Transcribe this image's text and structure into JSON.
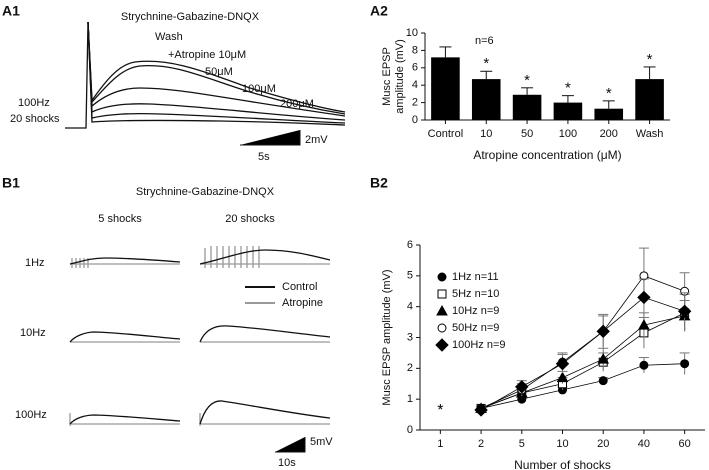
{
  "panels": [
    "A1",
    "A2",
    "B1",
    "B2"
  ],
  "a1": {
    "labels": [
      "Strychnine-Gabazine-DNQX",
      "Wash",
      "+Atropine 10μM",
      "50μM",
      "100μM",
      "200μM"
    ],
    "stim": [
      "100Hz",
      "20 shocks"
    ],
    "scale_y": "2mV",
    "scale_x": "5s"
  },
  "b1": {
    "title": "Strychnine-Gabazine-DNQX",
    "columns": [
      "5 shocks",
      "20 shocks"
    ],
    "rows": [
      "1Hz",
      "10Hz",
      "100Hz"
    ],
    "legend": [
      {
        "name": "Control",
        "color": "#111111"
      },
      {
        "name": "Atropine",
        "color": "#999999"
      }
    ],
    "scale_y": "5mV",
    "scale_x": "10s"
  },
  "chart_data": [
    {
      "type": "bar",
      "ylabel": [
        "Musc EPSP",
        "amplitude (mV)"
      ],
      "xlabel": "Atropine concentration (μM)",
      "annotation": "n=6",
      "color": "#000000",
      "categories": [
        "Control",
        "10",
        "50",
        "100",
        "200",
        "Wash"
      ],
      "values": [
        7.2,
        4.7,
        2.9,
        2.0,
        1.3,
        4.7
      ],
      "errors": [
        1.2,
        0.9,
        0.8,
        0.8,
        0.9,
        1.4
      ],
      "significance": [
        null,
        "*",
        "*",
        "*",
        "*",
        "*"
      ],
      "ylim": [
        0,
        10
      ],
      "yticks": [
        0,
        2,
        4,
        6,
        8,
        10
      ]
    },
    {
      "type": "line",
      "ylabel": "Musc EPSP amplitude (mV)",
      "xlabel": "Number of shocks",
      "legend": "upper left",
      "categories": [
        "1",
        "2",
        "5",
        "10",
        "20",
        "40",
        "60"
      ],
      "ylim": [
        0,
        6
      ],
      "yticks": [
        0,
        1,
        2,
        3,
        4,
        5,
        6
      ],
      "baseline": {
        "marker": "*",
        "value": 0.75,
        "error": 0.05
      },
      "series": [
        {
          "name": "1Hz n=11",
          "color": "#000000",
          "marker": "circle",
          "filled": true,
          "values": [
            null,
            0.7,
            1.0,
            1.3,
            1.6,
            2.1,
            2.15
          ],
          "errors": [
            null,
            0.05,
            0.1,
            0.1,
            0.1,
            0.25,
            0.35
          ]
        },
        {
          "name": "5Hz n=10",
          "color": "#000000",
          "marker": "square",
          "filled": false,
          "values": [
            null,
            0.7,
            1.2,
            1.5,
            2.2,
            3.15,
            3.8
          ],
          "errors": [
            null,
            0.05,
            0.15,
            0.2,
            0.3,
            0.5,
            0.6
          ]
        },
        {
          "name": "10Hz n=9",
          "color": "#000000",
          "marker": "triangle",
          "filled": true,
          "values": [
            null,
            0.7,
            1.2,
            1.7,
            2.3,
            3.4,
            3.7
          ],
          "errors": [
            null,
            0.05,
            0.15,
            0.2,
            0.35,
            0.4,
            0.5
          ]
        },
        {
          "name": "50Hz n=9",
          "color": "#000000",
          "marker": "circle",
          "filled": false,
          "values": [
            null,
            0.7,
            1.3,
            2.2,
            3.2,
            5.0,
            4.5
          ],
          "errors": [
            null,
            0.05,
            0.2,
            0.3,
            0.55,
            0.9,
            0.6
          ]
        },
        {
          "name": "100Hz n=9",
          "color": "#000000",
          "marker": "diamond",
          "filled": true,
          "values": [
            null,
            0.65,
            1.4,
            2.15,
            3.2,
            4.3,
            3.85
          ],
          "errors": [
            null,
            0.05,
            0.2,
            0.3,
            0.5,
            0.6,
            0.6
          ]
        }
      ]
    }
  ]
}
